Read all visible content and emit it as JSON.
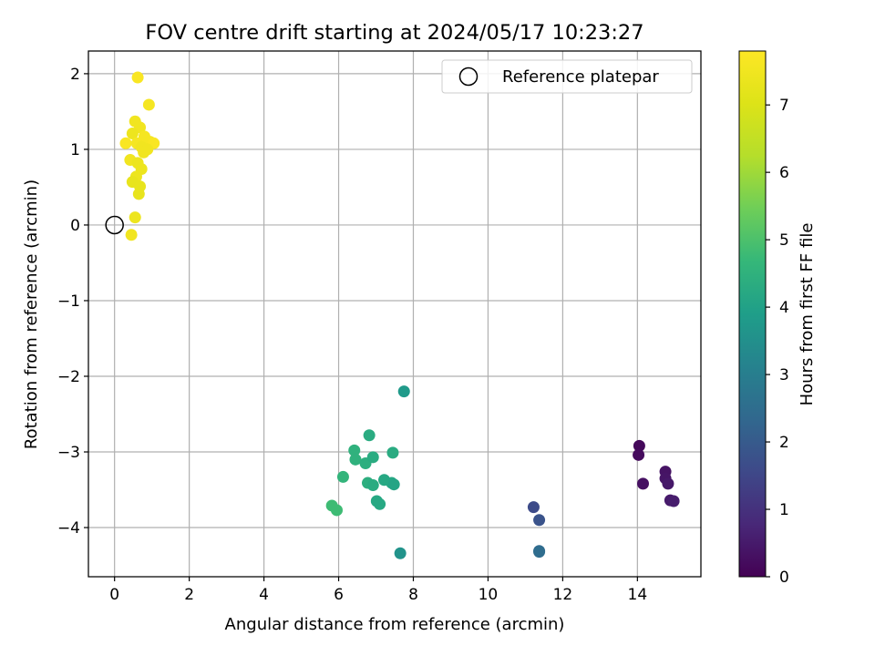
{
  "chart_data": {
    "type": "scatter",
    "title": "FOV centre drift starting at 2024/05/17 10:23:27",
    "xlabel": "Angular distance from reference (arcmin)",
    "ylabel": "Rotation from reference (arcmin)",
    "xlim": [
      -0.7,
      15.7
    ],
    "ylim": [
      -4.65,
      2.3
    ],
    "xticks": [
      0,
      2,
      4,
      6,
      8,
      10,
      12,
      14
    ],
    "yticks": [
      -4,
      -3,
      -2,
      -1,
      0,
      1,
      2
    ],
    "grid": true,
    "legend": {
      "position": "top-right",
      "entries": [
        "Reference platepar"
      ]
    },
    "reference_point": {
      "x": 0,
      "y": 0,
      "label": "Reference platepar"
    },
    "colorbar": {
      "label": "Hours from first FF file",
      "min": 0,
      "max": 7.8,
      "ticks": [
        0,
        1,
        2,
        3,
        4,
        5,
        6,
        7
      ],
      "colormap": "viridis"
    },
    "points": [
      {
        "x": 14.05,
        "y": -2.92,
        "h": 0.15
      },
      {
        "x": 14.03,
        "y": -3.04,
        "h": 0.2
      },
      {
        "x": 14.15,
        "y": -3.42,
        "h": 0.3
      },
      {
        "x": 14.75,
        "y": -3.26,
        "h": 0.35
      },
      {
        "x": 14.75,
        "y": -3.35,
        "h": 0.4
      },
      {
        "x": 14.82,
        "y": -3.42,
        "h": 0.45
      },
      {
        "x": 14.88,
        "y": -3.64,
        "h": 0.5
      },
      {
        "x": 14.97,
        "y": -3.65,
        "h": 0.55
      },
      {
        "x": 11.22,
        "y": -3.73,
        "h": 1.6
      },
      {
        "x": 11.37,
        "y": -3.9,
        "h": 1.8
      },
      {
        "x": 11.37,
        "y": -4.31,
        "h": 2.4
      },
      {
        "x": 11.37,
        "y": -4.32,
        "h": 2.5
      },
      {
        "x": 7.75,
        "y": -2.2,
        "h": 3.8
      },
      {
        "x": 7.65,
        "y": -4.34,
        "h": 3.6
      },
      {
        "x": 6.82,
        "y": -2.78,
        "h": 4.3
      },
      {
        "x": 6.42,
        "y": -2.98,
        "h": 4.5
      },
      {
        "x": 6.45,
        "y": -3.1,
        "h": 4.5
      },
      {
        "x": 6.72,
        "y": -3.15,
        "h": 4.4
      },
      {
        "x": 6.92,
        "y": -3.07,
        "h": 4.3
      },
      {
        "x": 7.45,
        "y": -3.01,
        "h": 4.3
      },
      {
        "x": 6.12,
        "y": -3.33,
        "h": 4.6
      },
      {
        "x": 6.78,
        "y": -3.41,
        "h": 4.4
      },
      {
        "x": 6.92,
        "y": -3.44,
        "h": 4.3
      },
      {
        "x": 7.22,
        "y": -3.37,
        "h": 4.2
      },
      {
        "x": 7.42,
        "y": -3.41,
        "h": 4.2
      },
      {
        "x": 7.48,
        "y": -3.43,
        "h": 4.1
      },
      {
        "x": 7.02,
        "y": -3.65,
        "h": 4.2
      },
      {
        "x": 7.1,
        "y": -3.69,
        "h": 4.2
      },
      {
        "x": 5.82,
        "y": -3.71,
        "h": 4.8
      },
      {
        "x": 5.95,
        "y": -3.77,
        "h": 4.8
      },
      {
        "x": 0.62,
        "y": 1.95,
        "h": 7.7
      },
      {
        "x": 0.92,
        "y": 1.59,
        "h": 7.6
      },
      {
        "x": 0.55,
        "y": 1.37,
        "h": 7.5
      },
      {
        "x": 0.68,
        "y": 1.29,
        "h": 7.5
      },
      {
        "x": 0.48,
        "y": 1.21,
        "h": 7.4
      },
      {
        "x": 0.8,
        "y": 1.17,
        "h": 7.6
      },
      {
        "x": 0.3,
        "y": 1.08,
        "h": 7.7
      },
      {
        "x": 0.6,
        "y": 1.08,
        "h": 7.6
      },
      {
        "x": 0.95,
        "y": 1.1,
        "h": 7.6
      },
      {
        "x": 1.05,
        "y": 1.08,
        "h": 7.7
      },
      {
        "x": 0.72,
        "y": 1.03,
        "h": 7.5
      },
      {
        "x": 0.88,
        "y": 1.0,
        "h": 7.5
      },
      {
        "x": 0.78,
        "y": 0.96,
        "h": 7.5
      },
      {
        "x": 0.42,
        "y": 0.86,
        "h": 7.5
      },
      {
        "x": 0.62,
        "y": 0.82,
        "h": 7.4
      },
      {
        "x": 0.72,
        "y": 0.74,
        "h": 7.4
      },
      {
        "x": 0.58,
        "y": 0.64,
        "h": 7.4
      },
      {
        "x": 0.48,
        "y": 0.57,
        "h": 7.3
      },
      {
        "x": 0.68,
        "y": 0.51,
        "h": 7.3
      },
      {
        "x": 0.65,
        "y": 0.41,
        "h": 7.3
      },
      {
        "x": 0.55,
        "y": 0.1,
        "h": 7.4
      },
      {
        "x": 0.45,
        "y": -0.13,
        "h": 7.5
      }
    ]
  }
}
